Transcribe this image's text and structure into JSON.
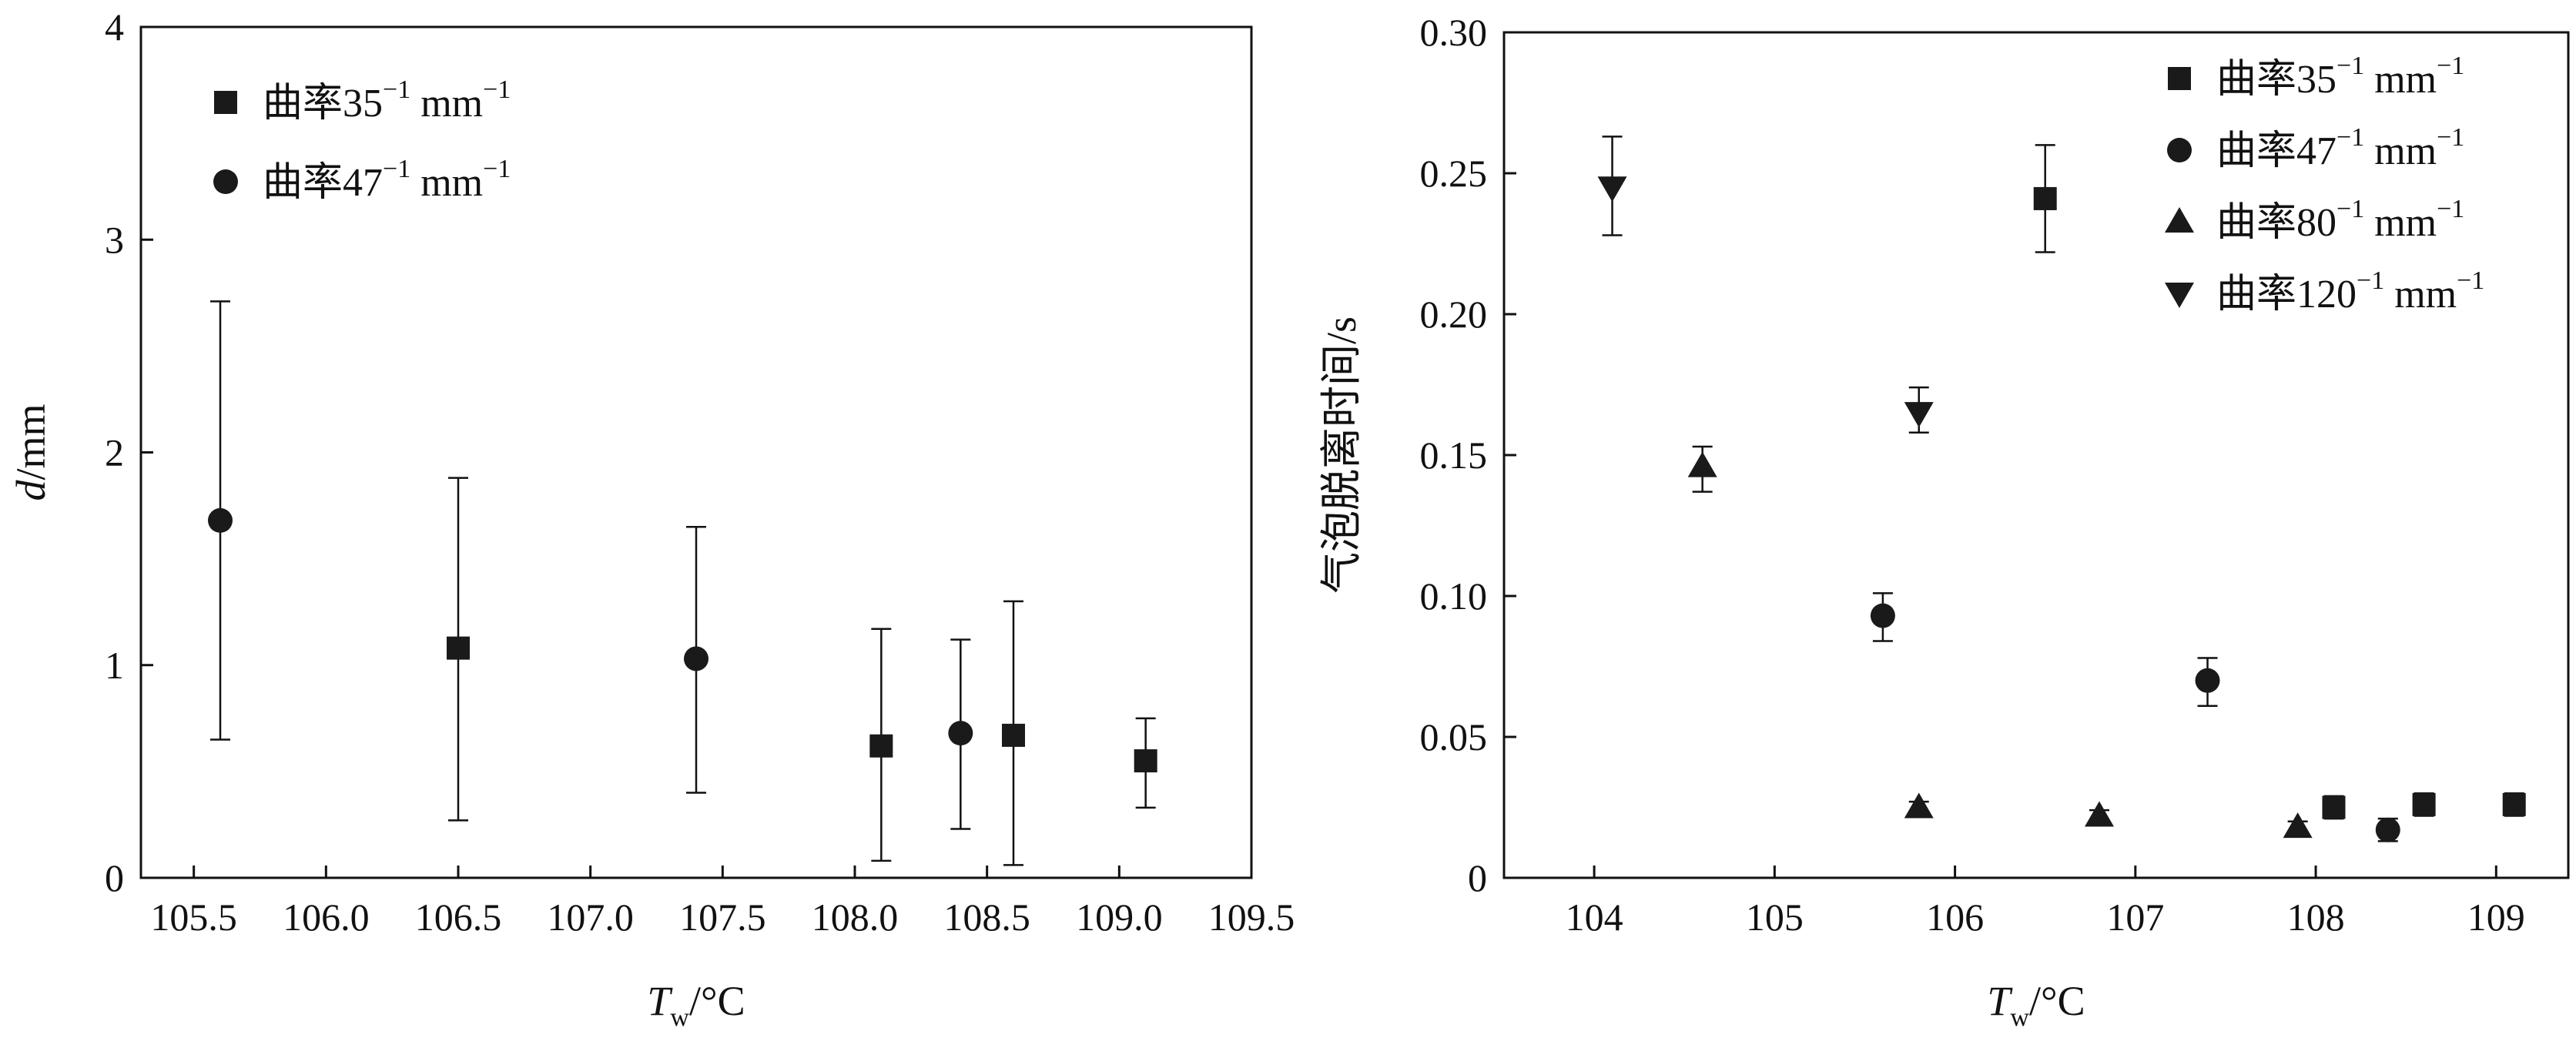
{
  "chart_data": [
    {
      "type": "scatter",
      "title": "",
      "xlabel": {
        "main": "T",
        "sub": "w",
        "unit": "/°C"
      },
      "ylabel": {
        "main": "d",
        "unit": "/mm"
      },
      "xlim": [
        105.3,
        109.5
      ],
      "ylim": [
        0,
        4
      ],
      "xticks": [
        105.5,
        106.0,
        106.5,
        107.0,
        107.5,
        108.0,
        108.5,
        109.0,
        109.5
      ],
      "xtick_labels": [
        "105.5",
        "106.0",
        "106.5",
        "107.0",
        "107.5",
        "108.0",
        "108.5",
        "109.0",
        "109.5"
      ],
      "yticks": [
        0,
        1,
        2,
        3,
        4
      ],
      "ytick_labels": [
        "0",
        "1",
        "2",
        "3",
        "4"
      ],
      "grid": false,
      "legend": "top-left",
      "series": [
        {
          "name": {
            "base": "曲率35",
            "sup": "−1",
            "unit": " mm",
            "unit_sup": "−1"
          },
          "marker": "square",
          "points": [
            {
              "x": 106.5,
              "y": 1.08,
              "lo": 0.27,
              "hi": 1.88
            },
            {
              "x": 108.1,
              "y": 0.62,
              "lo": 0.08,
              "hi": 1.17
            },
            {
              "x": 108.6,
              "y": 0.67,
              "lo": 0.06,
              "hi": 1.3
            },
            {
              "x": 109.1,
              "y": 0.55,
              "lo": 0.33,
              "hi": 0.75
            }
          ]
        },
        {
          "name": {
            "base": "曲率47",
            "sup": "−1",
            "unit": " mm",
            "unit_sup": "−1"
          },
          "marker": "circle",
          "points": [
            {
              "x": 105.6,
              "y": 1.68,
              "lo": 0.65,
              "hi": 2.71
            },
            {
              "x": 107.4,
              "y": 1.03,
              "lo": 0.4,
              "hi": 1.65
            },
            {
              "x": 108.4,
              "y": 0.68,
              "lo": 0.23,
              "hi": 1.12
            }
          ]
        }
      ]
    },
    {
      "type": "scatter",
      "title": "",
      "xlabel": {
        "main": "T",
        "sub": "w",
        "unit": "/°C"
      },
      "ylabel": {
        "main": "气泡脱离时间/s"
      },
      "xlim": [
        103.5,
        109.4
      ],
      "ylim": [
        0,
        0.3
      ],
      "xticks": [
        104,
        105,
        106,
        107,
        108,
        109
      ],
      "xtick_labels": [
        "104",
        "105",
        "106",
        "107",
        "108",
        "109"
      ],
      "yticks": [
        0,
        0.05,
        0.1,
        0.15,
        0.2,
        0.25,
        0.3
      ],
      "ytick_labels": [
        "0",
        "0.05",
        "0.10",
        "0.15",
        "0.20",
        "0.25",
        "0.30"
      ],
      "grid": false,
      "legend": "top-right",
      "series": [
        {
          "name": {
            "base": "曲率35",
            "sup": "−1",
            "unit": " mm",
            "unit_sup": "−1"
          },
          "marker": "square",
          "points": [
            {
              "x": 106.5,
              "y": 0.241,
              "lo": 0.222,
              "hi": 0.26
            },
            {
              "x": 108.1,
              "y": 0.025,
              "lo": 0.021,
              "hi": 0.029
            },
            {
              "x": 108.6,
              "y": 0.026,
              "lo": 0.022,
              "hi": 0.03
            },
            {
              "x": 109.1,
              "y": 0.026,
              "lo": 0.022,
              "hi": 0.03
            }
          ]
        },
        {
          "name": {
            "base": "曲率47",
            "sup": "−1",
            "unit": " mm",
            "unit_sup": "−1"
          },
          "marker": "circle",
          "points": [
            {
              "x": 105.6,
              "y": 0.093,
              "lo": 0.084,
              "hi": 0.101
            },
            {
              "x": 107.4,
              "y": 0.07,
              "lo": 0.061,
              "hi": 0.078
            },
            {
              "x": 108.4,
              "y": 0.017,
              "lo": 0.013,
              "hi": 0.021
            }
          ]
        },
        {
          "name": {
            "base": "曲率80",
            "sup": "−1",
            "unit": " mm",
            "unit_sup": "−1"
          },
          "marker": "triangle-up",
          "points": [
            {
              "x": 104.6,
              "y": 0.146,
              "lo": 0.137,
              "hi": 0.153
            },
            {
              "x": 105.8,
              "y": 0.025,
              "lo": 0.022,
              "hi": 0.027
            },
            {
              "x": 106.8,
              "y": 0.022,
              "lo": 0.02,
              "hi": 0.024
            },
            {
              "x": 107.9,
              "y": 0.018,
              "lo": 0.016,
              "hi": 0.02
            }
          ]
        },
        {
          "name": {
            "base": "曲率120",
            "sup": "−1",
            "unit": " mm",
            "unit_sup": "−1"
          },
          "marker": "triangle-down",
          "points": [
            {
              "x": 104.1,
              "y": 0.245,
              "lo": 0.228,
              "hi": 0.263
            },
            {
              "x": 105.8,
              "y": 0.165,
              "lo": 0.158,
              "hi": 0.174
            }
          ]
        }
      ]
    }
  ]
}
